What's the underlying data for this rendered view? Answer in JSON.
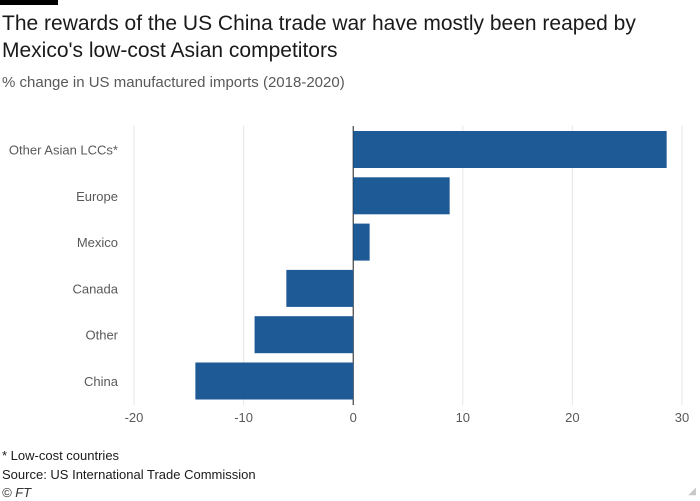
{
  "header": {
    "title": "The rewards of the US China trade war have mostly been reaped by Mexico's low-cost Asian competitors",
    "subtitle": "% change in US manufactured imports (2018-2020)"
  },
  "footer": {
    "note": "* Low-cost countries",
    "source": "Source: US International Trade Commission",
    "credit": "© FT"
  },
  "colors": {
    "bar": "#1d5a96",
    "grid": "#e6e6e6",
    "zero_line": "#1a1a1a",
    "axis_text": "#595959"
  },
  "chart_data": {
    "type": "bar",
    "orientation": "horizontal",
    "categories": [
      "Other Asian LCCs*",
      "Europe",
      "Mexico",
      "Canada",
      "Other",
      "China"
    ],
    "values": [
      28.6,
      8.8,
      1.5,
      -6.1,
      -9.0,
      -14.4
    ],
    "xlim": [
      -20,
      30
    ],
    "xticks": [
      -20,
      -10,
      0,
      10,
      20,
      30
    ],
    "xlabel": "",
    "ylabel": "",
    "grid": true
  }
}
